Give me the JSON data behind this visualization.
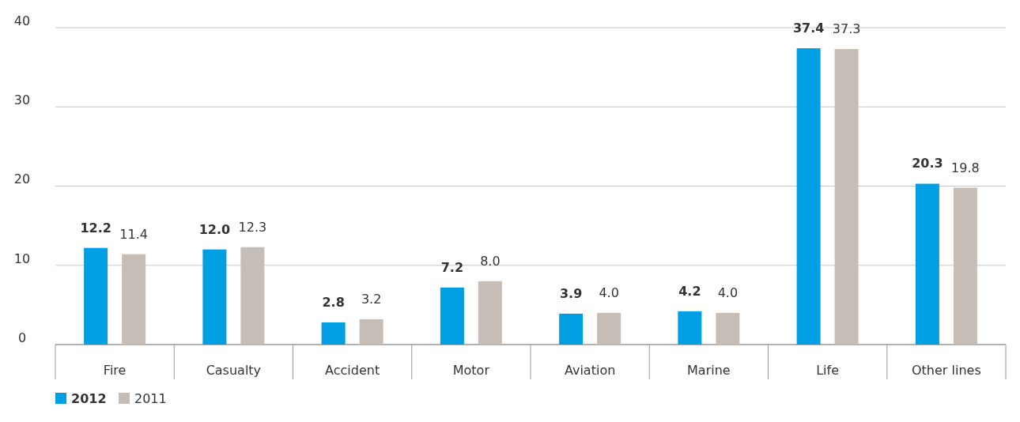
{
  "chart_data": {
    "type": "bar",
    "categories": [
      "Fire",
      "Casualty",
      "Accident",
      "Motor",
      "Aviation",
      "Marine",
      "Life",
      "Other lines"
    ],
    "series": [
      {
        "name": "2012",
        "color": "#009fe3",
        "values": [
          12.2,
          12.0,
          2.8,
          7.2,
          3.9,
          4.2,
          37.4,
          20.3
        ],
        "value_labels": [
          "12.2",
          "12.0",
          "2.8",
          "7.2",
          "3.9",
          "4.2",
          "37.4",
          "20.3"
        ]
      },
      {
        "name": "2011",
        "color": "#c5bdb6",
        "values": [
          11.4,
          12.3,
          3.2,
          8.0,
          4.0,
          4.0,
          37.3,
          19.8
        ],
        "value_labels": [
          "11.4",
          "12.3",
          "3.2",
          "8.0",
          "4.0",
          "4.0",
          "37.3",
          "19.8"
        ]
      }
    ],
    "ylim": [
      0,
      40
    ],
    "yticks": [
      0,
      10,
      20,
      30,
      40
    ],
    "grid": "y",
    "legend": "bottom left"
  }
}
